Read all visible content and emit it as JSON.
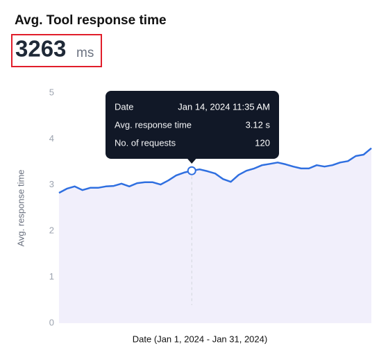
{
  "header": {
    "title": "Avg. Tool response time",
    "value": 3263,
    "unit": "ms"
  },
  "tooltip": {
    "rows": [
      [
        "Date",
        "Jan 14, 2024 11:35 AM"
      ],
      [
        "Avg. response time",
        "3.12 s"
      ],
      [
        "No. of requests",
        "120"
      ]
    ]
  },
  "chart_data": {
    "type": "line",
    "ylabel": "Avg. response time",
    "xlabel": "Date (Jan 1, 2024 - Jan 31, 2024)",
    "categories": [
      null,
      null,
      null,
      null,
      null,
      null,
      null,
      null,
      null,
      null,
      null,
      null,
      null,
      null,
      null,
      null,
      null,
      null,
      null,
      null,
      null,
      null,
      null,
      null,
      null,
      null,
      null,
      null,
      null,
      null,
      null,
      null,
      null,
      null,
      null,
      null,
      null,
      null,
      null,
      null,
      null
    ],
    "values": [
      2.83,
      2.92,
      2.97,
      2.89,
      2.94,
      2.94,
      2.97,
      2.98,
      3.03,
      2.97,
      3.04,
      3.06,
      3.06,
      3.01,
      3.1,
      3.21,
      3.27,
      3.31,
      3.34,
      3.3,
      3.25,
      3.13,
      3.07,
      3.22,
      3.31,
      3.36,
      3.43,
      3.46,
      3.49,
      3.45,
      3.4,
      3.36,
      3.36,
      3.43,
      3.4,
      3.43,
      3.49,
      3.52,
      3.63,
      3.66,
      3.8
    ],
    "color": "#2f6fe0",
    "ylim": [
      0,
      5
    ],
    "yticks": [
      0,
      1,
      2,
      3,
      4,
      5
    ]
  }
}
